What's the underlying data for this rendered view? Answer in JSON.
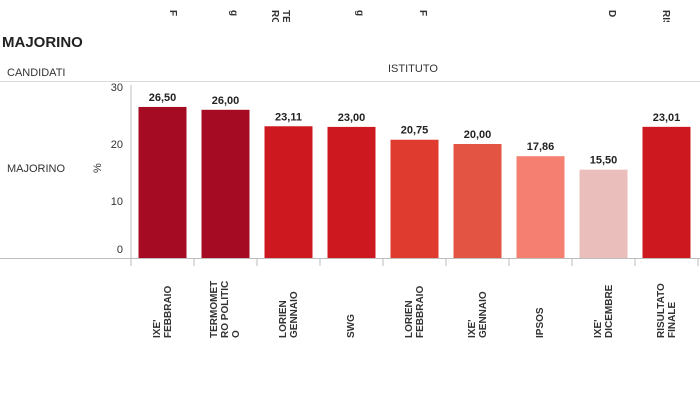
{
  "top_strip_labels": [
    {
      "text": "F"
    },
    {
      "text": "g"
    },
    {
      "text": "TE\nRO"
    },
    {
      "text": "g"
    },
    {
      "text": "F"
    },
    {
      "text": "D"
    },
    {
      "text": "RIS"
    }
  ],
  "title": "MAJORINO",
  "headers": {
    "candidati": "CANDIDATI",
    "istituto": "ISTITUTO"
  },
  "row_label": "MAJORINO",
  "colors": {
    "grid": "#e6e6e6",
    "axis": "#bdbdbd"
  },
  "chart_data": {
    "type": "bar",
    "title": "",
    "xlabel": "ISTITUTO",
    "ylabel": "%",
    "ylim": [
      0,
      30
    ],
    "yticks": [
      0,
      10,
      20,
      30
    ],
    "categories": [
      "IXE' FEBBRAIO",
      "TERMOMETRO POLITICO",
      "LORIEN GENNAIO",
      "SWG",
      "LORIEN FEBBRAIO",
      "IXE' GENNAIO",
      "IPSOS",
      "IXE' DICEMBRE",
      "RISULTATO FINALE"
    ],
    "category_lines": [
      "IXE'\nFEBBRAIO",
      "TERMOMET\nRO POLITIC\nO",
      "LORIEN\nGENNAIO",
      "SWG",
      "LORIEN\nFEBBRAIO",
      "IXE'\nGENNAIO",
      "IPSOS",
      "IXE'\nDICEMBRE",
      "RISULTATO\nFINALE"
    ],
    "values": [
      26.5,
      26.0,
      23.11,
      23.0,
      20.75,
      20.0,
      17.86,
      15.5,
      23.01
    ],
    "value_labels": [
      "26,50",
      "26,00",
      "23,11",
      "23,00",
      "20,75",
      "20,00",
      "17,86",
      "15,50",
      "23,01"
    ],
    "bar_colors": [
      "#a50c24",
      "#a50c24",
      "#cc181e",
      "#cc181e",
      "#e03b2f",
      "#e35542",
      "#f58072",
      "#eabfbb",
      "#cc181e"
    ],
    "grid": false,
    "legend": "none"
  }
}
